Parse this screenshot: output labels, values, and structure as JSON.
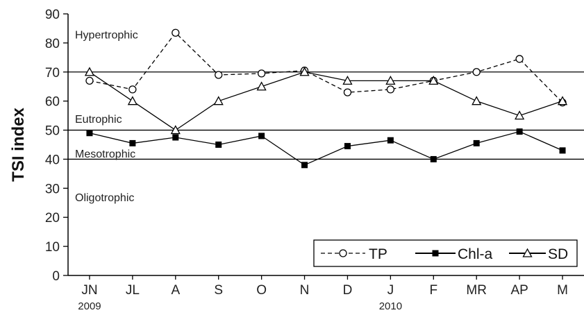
{
  "chart_data": {
    "type": "line",
    "ylabel": "TSI index",
    "ylim": [
      0,
      90
    ],
    "yticks": [
      "0",
      "10",
      "20",
      "30",
      "40",
      "50",
      "60",
      "70",
      "80",
      "90"
    ],
    "categories": [
      "JN",
      "JL",
      "A",
      "S",
      "O",
      "N",
      "D",
      "J",
      "F",
      "MR",
      "AP",
      "M"
    ],
    "year_labels": [
      {
        "text": "2009",
        "at": "JN"
      },
      {
        "text": "2010",
        "at": "J"
      }
    ],
    "thresholds": [
      70,
      50,
      40
    ],
    "zones": [
      {
        "label": "Hypertrophic",
        "y": 83
      },
      {
        "label": "Eutrophic",
        "y": 54
      },
      {
        "label": "Mesotrophic",
        "y": 42
      },
      {
        "label": "Oligotrophic",
        "y": 27
      }
    ],
    "series": [
      {
        "name": "TP",
        "style": "dashed",
        "marker": "open-circle",
        "values": [
          67,
          64,
          83.5,
          69,
          69.5,
          70.5,
          63,
          64,
          67,
          70,
          74.5,
          59.5
        ]
      },
      {
        "name": "Chl-a",
        "style": "solid",
        "marker": "filled-square",
        "values": [
          49,
          45.5,
          47.5,
          45,
          48,
          38,
          44.5,
          46.5,
          40,
          45.5,
          49.5,
          43
        ]
      },
      {
        "name": "SD",
        "style": "solid",
        "marker": "open-triangle",
        "values": [
          70,
          60,
          50,
          60,
          65,
          70,
          67,
          67,
          67,
          60,
          55,
          60
        ]
      }
    ],
    "legend_position": "bottom-right",
    "grid": false
  }
}
